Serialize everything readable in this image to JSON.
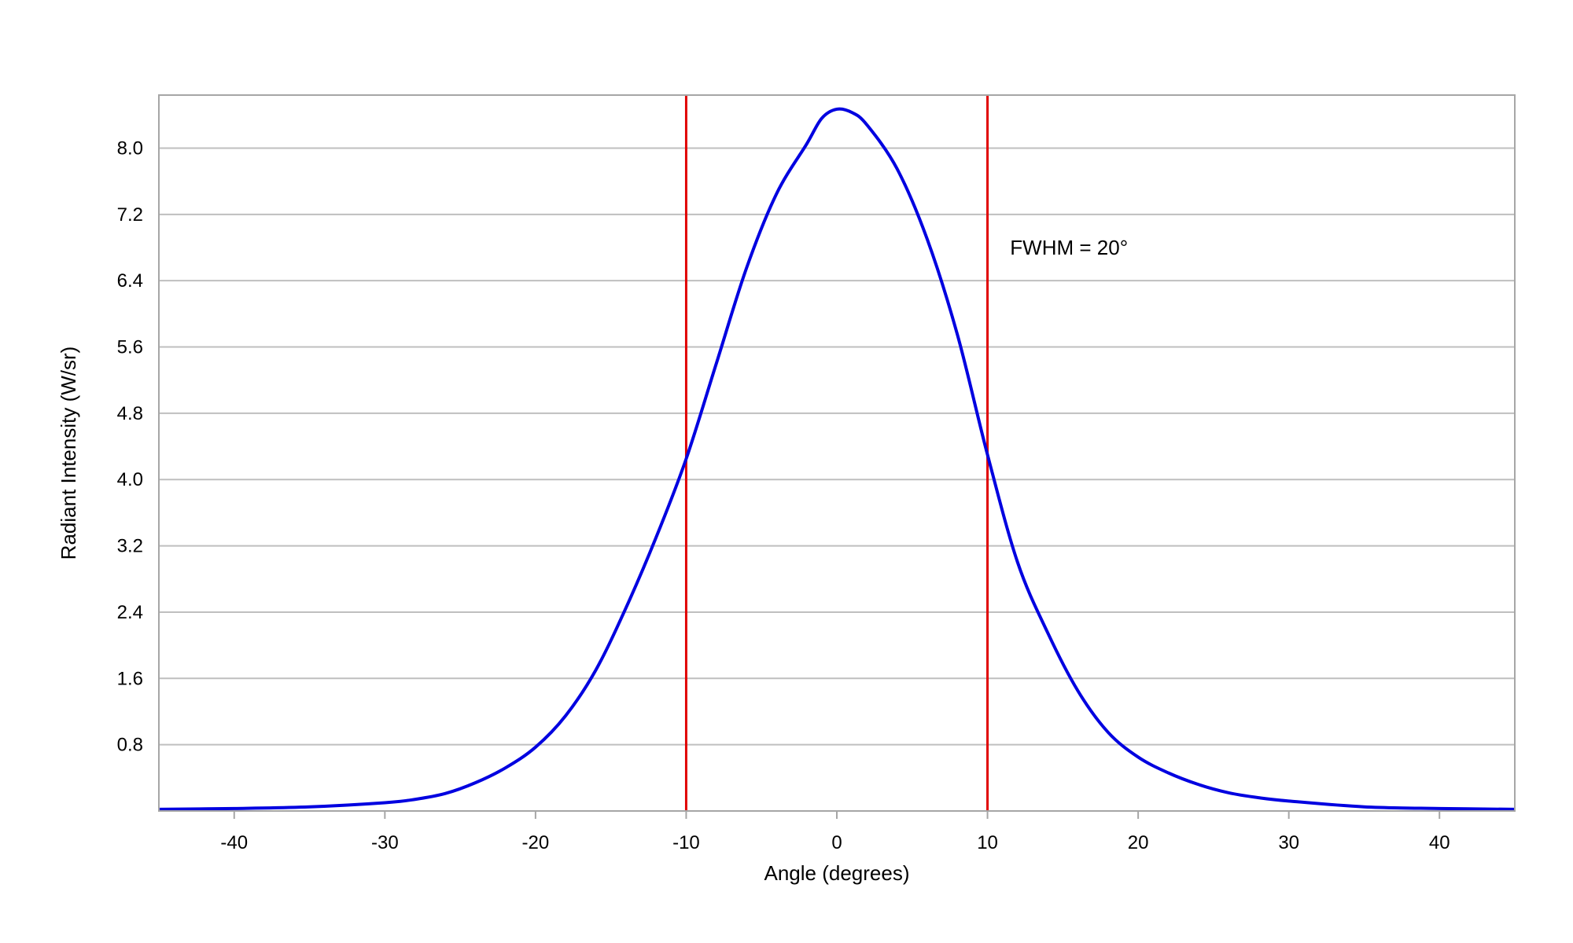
{
  "chart_data": {
    "type": "line",
    "title": "",
    "xlabel": "Angle (degrees)",
    "ylabel": "Radiant Intensity (W/sr)",
    "xlim": [
      -45,
      45
    ],
    "ylim": [
      0,
      8.64
    ],
    "x_ticks": [
      -40,
      -30,
      -20,
      -10,
      0,
      10,
      20,
      30,
      40
    ],
    "x_tick_labels": [
      "-40",
      "-30",
      "-20",
      "-10",
      "0",
      "10",
      "20",
      "30",
      "40"
    ],
    "y_ticks": [
      0.8,
      1.6,
      2.4,
      3.2,
      4.0,
      4.8,
      5.6,
      6.4,
      7.2,
      8.0
    ],
    "y_tick_labels": [
      "0.8",
      "1.6",
      "2.4",
      "3.2",
      "4.0",
      "4.8",
      "5.6",
      "6.4",
      "7.2",
      "8.0"
    ],
    "grid": "horizontal",
    "legend": "none",
    "series": [
      {
        "color": "#0000e0",
        "x": [
          -45,
          -40,
          -35,
          -30,
          -28,
          -26,
          -24,
          -22,
          -20,
          -18,
          -16,
          -14,
          -12,
          -10,
          -8,
          -6,
          -4,
          -2,
          -1,
          0,
          1,
          2,
          4,
          6,
          8,
          10,
          12,
          14,
          16,
          18,
          20,
          22,
          24,
          26,
          28,
          30,
          35,
          40,
          45
        ],
        "y": [
          0.02,
          0.03,
          0.05,
          0.1,
          0.14,
          0.21,
          0.34,
          0.52,
          0.77,
          1.15,
          1.7,
          2.45,
          3.3,
          4.25,
          5.4,
          6.55,
          7.45,
          8.05,
          8.36,
          8.47,
          8.43,
          8.28,
          7.75,
          6.9,
          5.75,
          4.3,
          3.0,
          2.15,
          1.45,
          0.95,
          0.65,
          0.46,
          0.32,
          0.22,
          0.16,
          0.12,
          0.05,
          0.03,
          0.02
        ]
      }
    ],
    "vlines": [
      {
        "x": -10,
        "color": "#e00000"
      },
      {
        "x": 10,
        "color": "#e00000"
      }
    ],
    "annotation": {
      "text": "FWHM = 20°",
      "x": 11.5,
      "y": 6.8
    }
  }
}
